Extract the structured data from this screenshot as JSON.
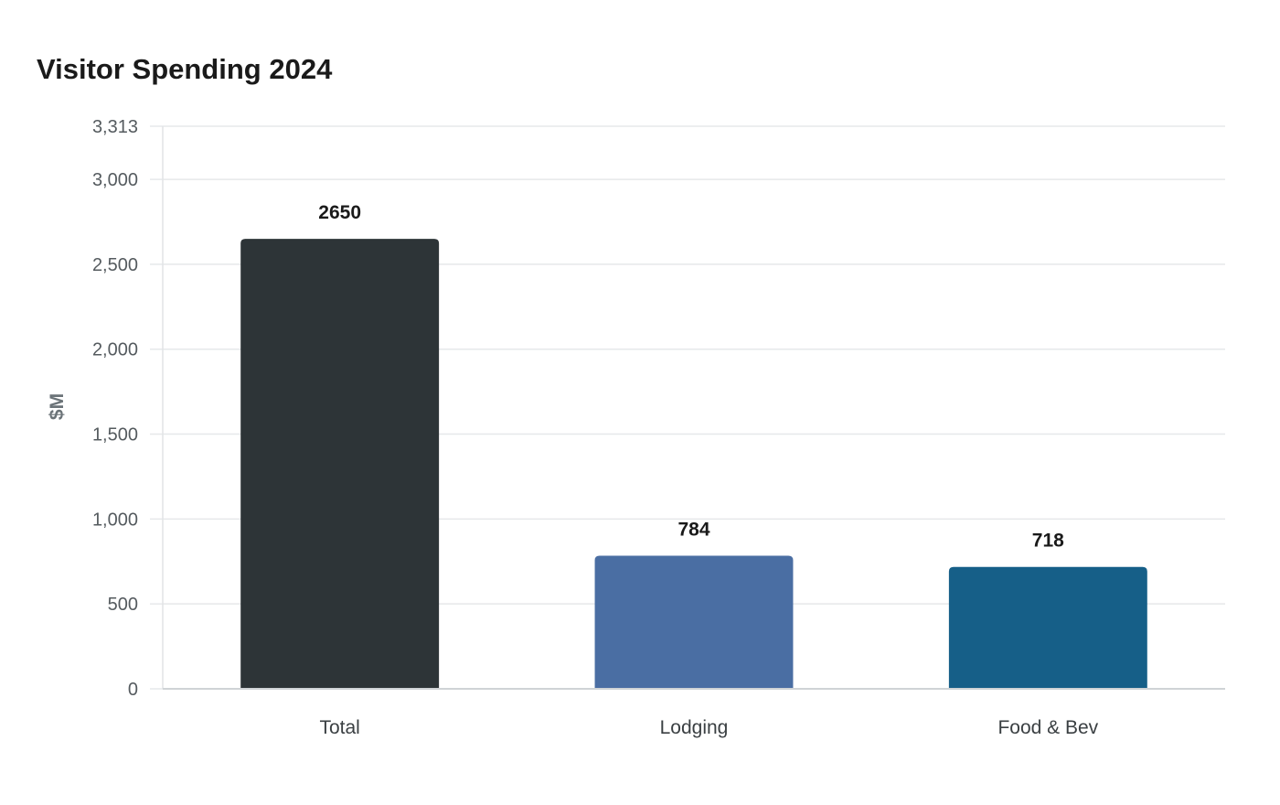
{
  "chart_data": {
    "type": "bar",
    "title": "Visitor Spending 2024",
    "xlabel": "",
    "ylabel": "$M",
    "categories": [
      "Total",
      "Lodging",
      "Food & Bev"
    ],
    "values": [
      2650,
      784,
      718
    ],
    "value_labels": [
      "2650",
      "784",
      "718"
    ],
    "colors": [
      "#2d3437",
      "#4a6ea3",
      "#165f88"
    ],
    "ylim": [
      0,
      3313
    ],
    "yticks": [
      0,
      500,
      1000,
      1500,
      2000,
      2500,
      3000,
      3313
    ],
    "ytick_labels": [
      "0",
      "500",
      "1,000",
      "1,500",
      "2,000",
      "2,500",
      "3,000",
      "3,313"
    ],
    "grid": true,
    "legend": "none"
  }
}
